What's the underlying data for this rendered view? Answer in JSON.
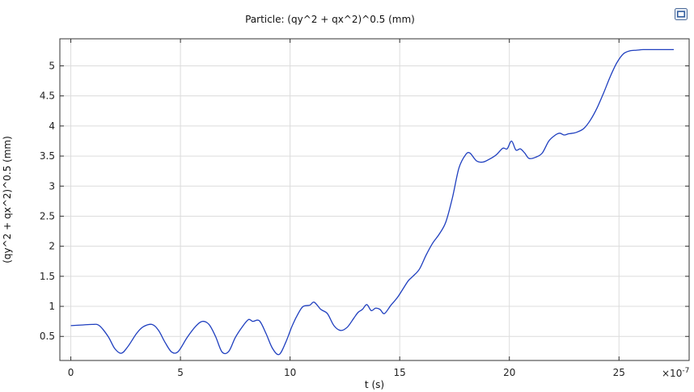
{
  "chart_data": {
    "type": "line",
    "title": "Particle: (qy^2 + qx^2)^0.5 (mm)",
    "xlabel": "t (s)",
    "ylabel": "(qy^2 + qx^2)^0.5 (mm)",
    "x_multiplier_label": "×10",
    "x_multiplier_exponent": "-7",
    "xlim": [
      -0.5,
      28.2
    ],
    "ylim": [
      0.1,
      5.45
    ],
    "xticks": [
      0,
      5,
      10,
      15,
      20,
      25
    ],
    "yticks": [
      0.5,
      1,
      1.5,
      2,
      2.5,
      3,
      3.5,
      4,
      4.5,
      5
    ],
    "grid": true,
    "color": "#1f3fbf",
    "x": [
      0,
      0.5,
      1,
      1.3,
      1.7,
      2,
      2.3,
      2.6,
      3,
      3.3,
      3.7,
      4,
      4.3,
      4.6,
      4.9,
      5.3,
      5.7,
      6,
      6.3,
      6.6,
      6.9,
      7.2,
      7.5,
      7.8,
      8.1,
      8.3,
      8.6,
      8.9,
      9.2,
      9.5,
      9.8,
      10.1,
      10.4,
      10.6,
      10.9,
      11.1,
      11.4,
      11.7,
      12,
      12.3,
      12.6,
      12.9,
      13.1,
      13.3,
      13.5,
      13.7,
      13.9,
      14.1,
      14.3,
      14.6,
      14.9,
      15.2,
      15.4,
      15.6,
      15.9,
      16.2,
      16.5,
      16.8,
      17.1,
      17.4,
      17.7,
      18,
      18.2,
      18.5,
      18.8,
      19.1,
      19.4,
      19.7,
      19.9,
      20.1,
      20.3,
      20.5,
      20.7,
      20.9,
      21.2,
      21.5,
      21.8,
      22.1,
      22.3,
      22.5,
      22.7,
      22.9,
      23.1,
      23.4,
      23.7,
      24,
      24.3,
      24.6,
      24.9,
      25.2,
      25.5,
      25.8,
      26.1,
      26.5,
      27,
      27.5
    ],
    "y": [
      0.68,
      0.69,
      0.7,
      0.68,
      0.5,
      0.3,
      0.22,
      0.33,
      0.55,
      0.66,
      0.7,
      0.6,
      0.4,
      0.24,
      0.25,
      0.48,
      0.67,
      0.75,
      0.7,
      0.5,
      0.24,
      0.25,
      0.48,
      0.65,
      0.78,
      0.75,
      0.76,
      0.55,
      0.3,
      0.2,
      0.4,
      0.68,
      0.9,
      1.0,
      1.02,
      1.07,
      0.95,
      0.88,
      0.68,
      0.6,
      0.65,
      0.8,
      0.9,
      0.95,
      1.03,
      0.93,
      0.97,
      0.95,
      0.88,
      1.02,
      1.15,
      1.32,
      1.43,
      1.5,
      1.62,
      1.85,
      2.05,
      2.2,
      2.4,
      2.8,
      3.3,
      3.52,
      3.55,
      3.42,
      3.4,
      3.45,
      3.52,
      3.63,
      3.62,
      3.75,
      3.6,
      3.62,
      3.55,
      3.46,
      3.48,
      3.55,
      3.75,
      3.85,
      3.88,
      3.85,
      3.87,
      3.88,
      3.9,
      3.96,
      4.1,
      4.3,
      4.55,
      4.82,
      5.05,
      5.2,
      5.25,
      5.26,
      5.27,
      5.27,
      5.27,
      5.27
    ]
  }
}
